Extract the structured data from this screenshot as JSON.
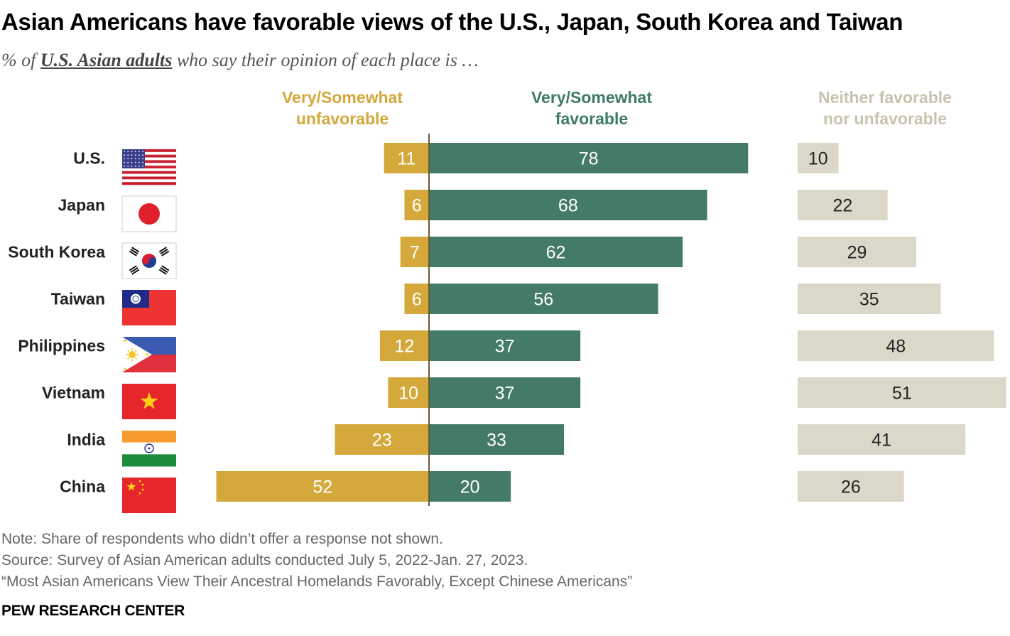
{
  "title": "Asian Americans have favorable views of the U.S., Japan, South Korea and Taiwan",
  "subtitle": {
    "prefix": "% of ",
    "emphasis": "U.S. Asian adults",
    "suffix": " who say their opinion of each place is …"
  },
  "colors": {
    "unfavorable": "#d4a83a",
    "favorable": "#437a69",
    "neither": "#dcd8c9",
    "axis": "#6b5a2a"
  },
  "chart_data": {
    "type": "bar",
    "categories": [
      "U.S.",
      "Japan",
      "South Korea",
      "Taiwan",
      "Philippines",
      "Vietnam",
      "India",
      "China"
    ],
    "flags": [
      "us-flag-icon",
      "japan-flag-icon",
      "south-korea-flag-icon",
      "taiwan-flag-icon",
      "philippines-flag-icon",
      "vietnam-flag-icon",
      "india-flag-icon",
      "china-flag-icon"
    ],
    "series": [
      {
        "name": "Very/Somewhat unfavorable",
        "values": [
          11,
          6,
          7,
          6,
          12,
          10,
          23,
          52
        ]
      },
      {
        "name": "Very/Somewhat favorable",
        "values": [
          78,
          68,
          62,
          56,
          37,
          37,
          33,
          20
        ]
      },
      {
        "name": "Neither favorable nor unfavorable",
        "values": [
          10,
          22,
          29,
          35,
          48,
          51,
          41,
          26
        ]
      }
    ],
    "headers": {
      "unfavorable": [
        "Very/Somewhat",
        "unfavorable"
      ],
      "favorable": [
        "Very/Somewhat",
        "favorable"
      ],
      "neither": [
        "Neither favorable",
        "nor unfavorable"
      ]
    }
  },
  "notes": {
    "note": "Note: Share of respondents who didn’t offer a response not shown.",
    "source": "Source: Survey of Asian American adults conducted July 5, 2022-Jan. 27, 2023.",
    "report": "“Most Asian Americans View Their Ancestral Homelands Favorably, Except Chinese Americans”"
  },
  "brand": "PEW RESEARCH CENTER"
}
